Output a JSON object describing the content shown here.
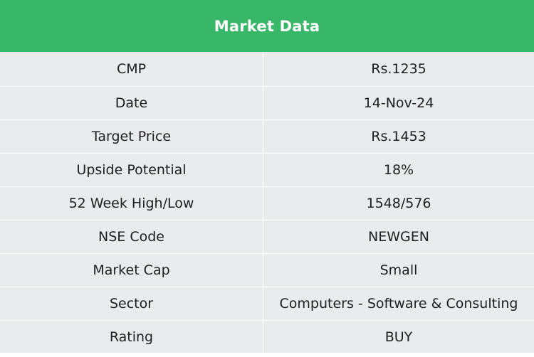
{
  "title": "Market Data",
  "rows": [
    {
      "label": "CMP",
      "value": "Rs.1235"
    },
    {
      "label": "Date",
      "value": "14-Nov-24"
    },
    {
      "label": "Target Price",
      "value": "Rs.1453"
    },
    {
      "label": "Upside Potential",
      "value": "18%"
    },
    {
      "label": "52 Week High/Low",
      "value": "1548/576"
    },
    {
      "label": "NSE Code",
      "value": "NEWGEN"
    },
    {
      "label": "Market Cap",
      "value": "Small"
    },
    {
      "label": "Sector",
      "value": "Computers - Software & Consulting"
    },
    {
      "label": "Rating",
      "value": "BUY"
    }
  ],
  "colors": {
    "header_bg": "#38b768",
    "header_text": "#ffffff",
    "row_bg": "#eaebec",
    "cell_text": "#1e1e1e"
  }
}
